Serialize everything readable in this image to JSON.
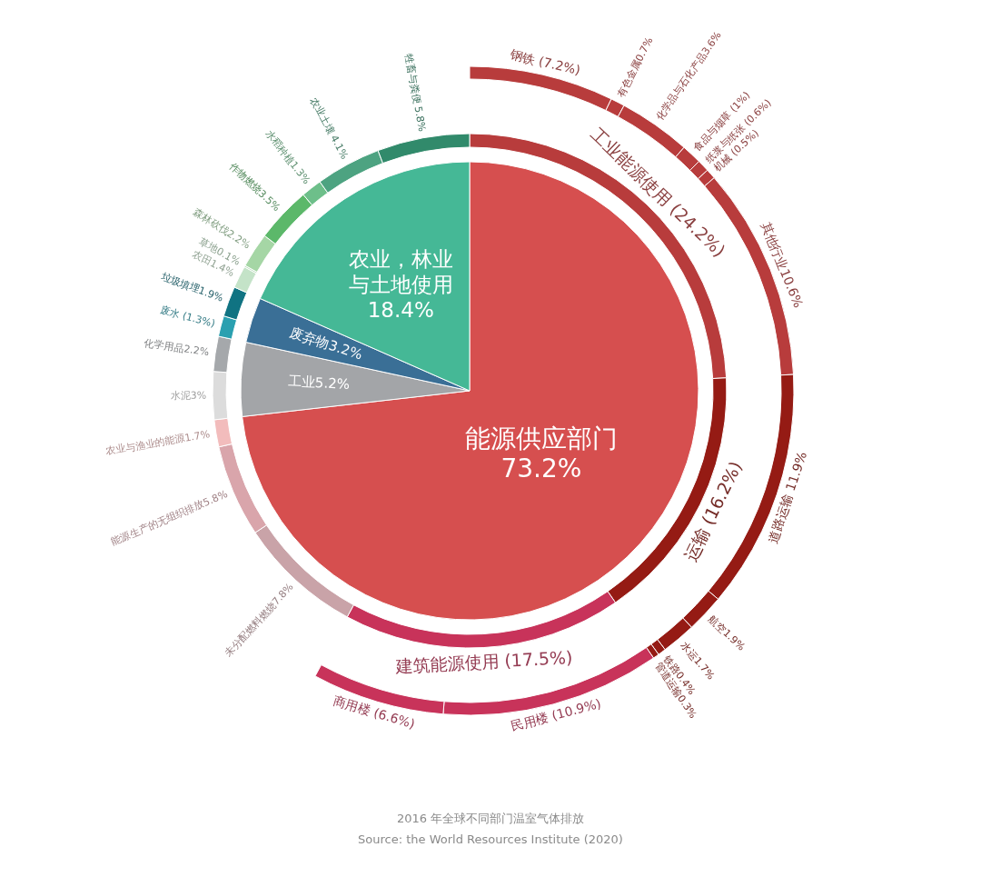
{
  "chart_data": {
    "type": "pie",
    "annotations": [
      "2016 年全球不同部门温室气体排放",
      "Source: the World Resources Institute (2020)"
    ],
    "series": [
      {
        "type": "pie",
        "value_labels": [
          "能源供应部门\n73.2%",
          "工业5.2%",
          "废弃物3.2%",
          "农业，林业与土地使用\n18.4%"
        ],
        "values": [
          73.2,
          5.2,
          3.2,
          18.4
        ],
        "colors": [
          "#d64f4f",
          "#a3a5a8",
          "#3a6f96",
          "#45b896"
        ]
      },
      {
        "type": "donut",
        "value_labels": [
          "钢铁 (7.2%)",
          "有色金属0.7%",
          "化学品与石化产品3.6%",
          "食品与烟草 (1%)",
          "纸浆与纸张 (0.6%)",
          "机械 (0.5%)",
          "其他行业10.6%",
          "道路运输 11.9%",
          "航空1.9%",
          "水运1.7%",
          "铁路0.4%",
          "管道运输0.3%",
          "民用楼 (10.9%)",
          "商用楼 (6.6%)"
        ],
        "values": [
          7.2,
          0.7,
          3.6,
          1,
          0.6,
          0.5,
          10.6,
          11.9,
          1.9,
          1.7,
          0.4,
          0.3,
          10.9,
          6.6
        ],
        "colors": [
          "#b83c3c",
          "#b83c3c",
          "#b83c3c",
          "#b83c3c",
          "#b83c3c",
          "#b83c3c",
          "#b83c3c",
          "#951b14",
          "#951b14",
          "#951b14",
          "#951b14",
          "#951b14",
          "#c8335a",
          "#c8335a"
        ]
      },
      {
        "type": "donut",
        "value_labels": [
          "工业能源使用 (24.2%)",
          "运输 (16.2%)",
          "建筑能源使用 (17.5%)",
          "未分配燃料燃烧7.8%",
          "能源生产的无组织排放5.8%",
          "农业与渔业的能源1.7%",
          "水泥3%",
          "化学用品2.2%",
          "废水 (1.3%)",
          "垃圾填埋1.9%",
          "农田1.4%",
          "草地0.1%",
          "森林砍伐2.2%",
          "作物燃烧3.5%",
          "水稻种植1.3%",
          "农业土壤 4.1%",
          "牲畜与粪便 5.8%"
        ],
        "values": [
          24.2,
          16.2,
          17.5,
          7.8,
          5.8,
          1.7,
          3,
          2.2,
          1.3,
          1.9,
          1.4,
          0.1,
          2.2,
          3.5,
          1.3,
          4.1,
          5.8
        ],
        "colors": [
          "#b83c3c",
          "#951b14",
          "#c8335a",
          "#c9a3a8",
          "#d9a5ab",
          "#f2bcbc",
          "#dcdcdc",
          "#a5a8ab",
          "#2aa0b0",
          "#107382",
          "#c4e3c8",
          "#b8dcbc",
          "#a5d6a5",
          "#5cb86a",
          "#6dbf8a",
          "#4da381",
          "#318a6b"
        ]
      }
    ]
  }
}
